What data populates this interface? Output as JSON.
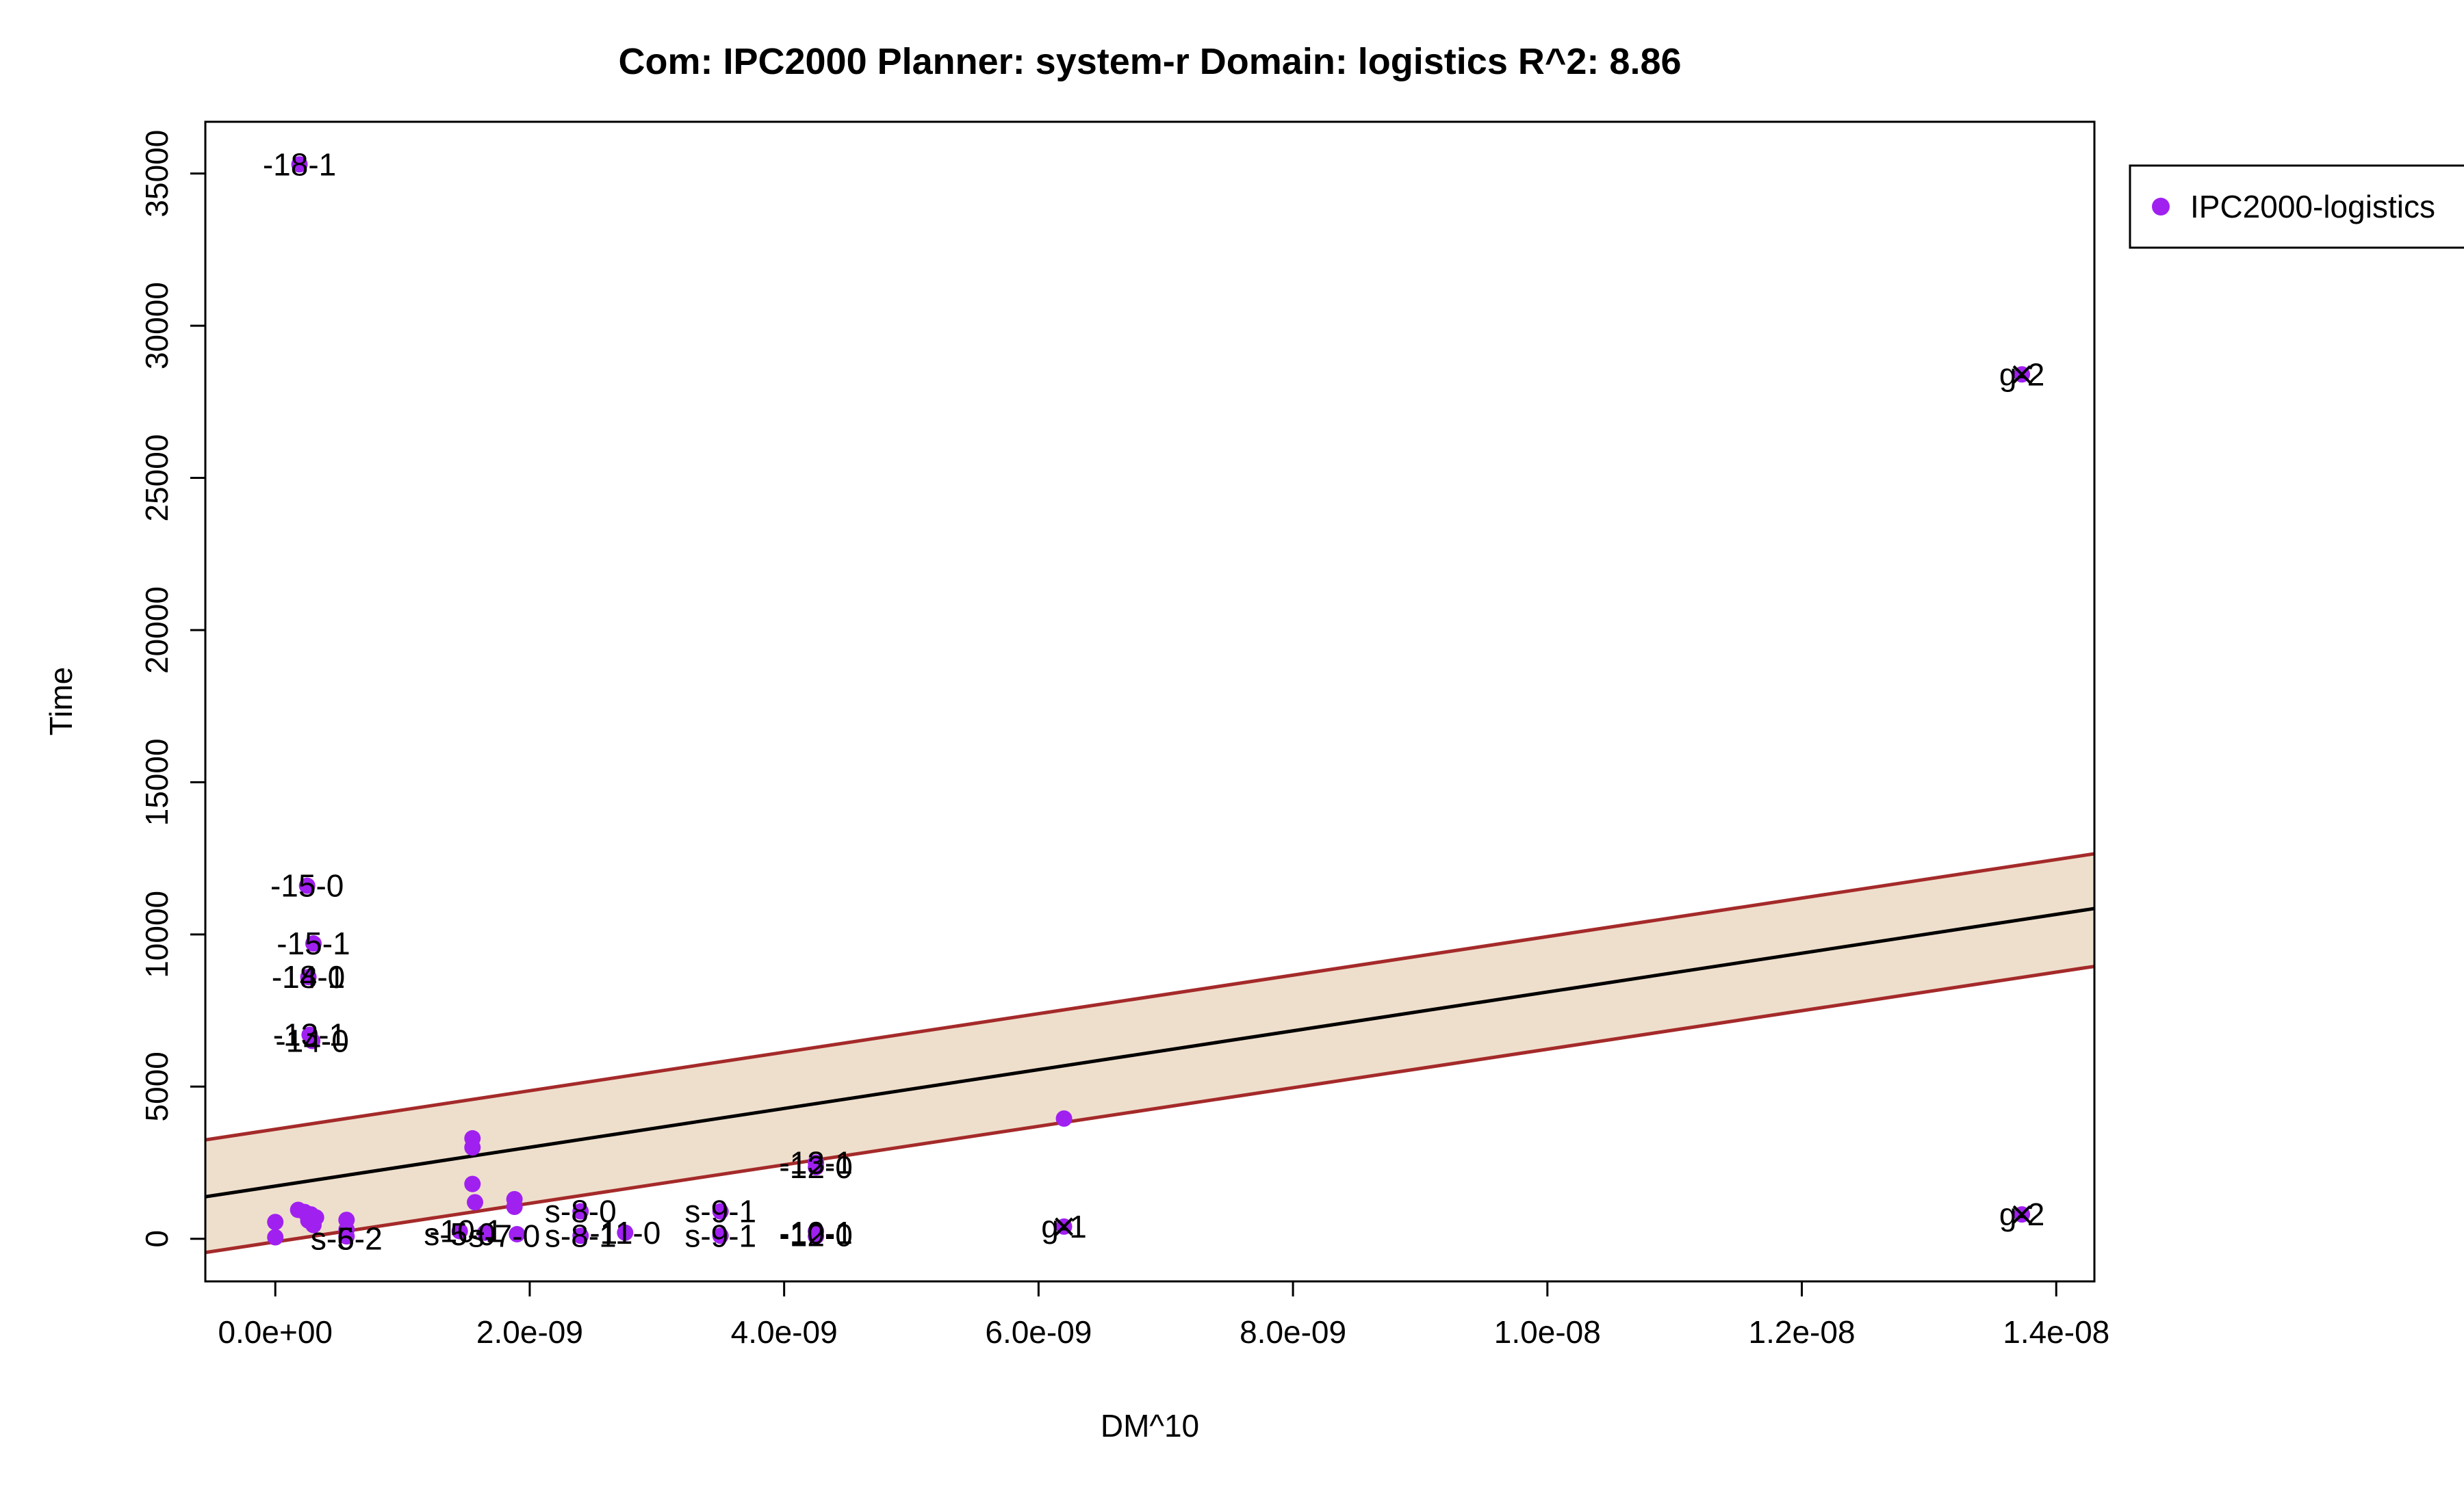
{
  "chart_data": {
    "type": "scatter",
    "title": "Com: IPC2000 Planner: system-r Domain: logistics R^2: 8.86",
    "xlabel": "DM^10",
    "ylabel": "Time",
    "xlim": [
      -5.5e-10,
      1.43e-08
    ],
    "ylim": [
      -1400,
      36700
    ],
    "x_ticks": [
      {
        "value": 0,
        "label": "0.0e+00"
      },
      {
        "value": 2e-09,
        "label": "2.0e-09"
      },
      {
        "value": 4e-09,
        "label": "4.0e-09"
      },
      {
        "value": 6e-09,
        "label": "6.0e-09"
      },
      {
        "value": 8e-09,
        "label": "8.0e-09"
      },
      {
        "value": 1e-08,
        "label": "1.0e-08"
      },
      {
        "value": 1.2e-08,
        "label": "1.2e-08"
      },
      {
        "value": 1.4e-08,
        "label": "1.4e-08"
      }
    ],
    "y_ticks": [
      {
        "value": 0,
        "label": "0"
      },
      {
        "value": 5000,
        "label": "5000"
      },
      {
        "value": 10000,
        "label": "10000"
      },
      {
        "value": 15000,
        "label": "15000"
      },
      {
        "value": 20000,
        "label": "20000"
      },
      {
        "value": 25000,
        "label": "25000"
      },
      {
        "value": 30000,
        "label": "30000"
      },
      {
        "value": 35000,
        "label": "35000"
      }
    ],
    "legend": {
      "position": "top-right, outside plot",
      "entries": [
        {
          "name": "IPC2000-logistics",
          "color": "#a020f0"
        }
      ]
    },
    "series": [
      {
        "name": "IPC2000-logistics",
        "color": "#a020f0",
        "points": [
          {
            "x": 1.9e-10,
            "y": 35300
          },
          {
            "x": 2.5e-10,
            "y": 11600
          },
          {
            "x": 3e-10,
            "y": 9700
          },
          {
            "x": 2.6e-10,
            "y": 8600
          },
          {
            "x": 2.7e-10,
            "y": 6700
          },
          {
            "x": 2.9e-10,
            "y": 6500
          },
          {
            "x": 0,
            "y": 550
          },
          {
            "x": 0,
            "y": 50
          },
          {
            "x": 1.8e-10,
            "y": 950
          },
          {
            "x": 2.3e-10,
            "y": 880
          },
          {
            "x": 2.8e-10,
            "y": 800
          },
          {
            "x": 3.2e-10,
            "y": 700
          },
          {
            "x": 2.6e-10,
            "y": 600
          },
          {
            "x": 3e-10,
            "y": 450
          },
          {
            "x": 5.6e-10,
            "y": 620
          },
          {
            "x": 5.6e-10,
            "y": 300
          },
          {
            "x": 5.6e-10,
            "y": 80
          },
          {
            "x": 1.55e-09,
            "y": 3300
          },
          {
            "x": 1.55e-09,
            "y": 3000
          },
          {
            "x": 1.55e-09,
            "y": 1800
          },
          {
            "x": 1.57e-09,
            "y": 1200
          },
          {
            "x": 1.88e-09,
            "y": 1300
          },
          {
            "x": 1.88e-09,
            "y": 1050
          },
          {
            "x": 1.45e-09,
            "y": 250
          },
          {
            "x": 1.65e-09,
            "y": 200
          },
          {
            "x": 1.9e-09,
            "y": 150
          },
          {
            "x": 2.4e-09,
            "y": 900
          },
          {
            "x": 2.4e-09,
            "y": 100
          },
          {
            "x": 2.75e-09,
            "y": 200
          },
          {
            "x": 3.5e-09,
            "y": 900
          },
          {
            "x": 3.5e-09,
            "y": 100
          },
          {
            "x": 4.25e-09,
            "y": 2500
          },
          {
            "x": 4.25e-09,
            "y": 2350
          },
          {
            "x": 4.25e-09,
            "y": 250
          },
          {
            "x": 4.25e-09,
            "y": 80
          },
          {
            "x": 6.2e-09,
            "y": 3950
          },
          {
            "x": 6.2e-09,
            "y": 400
          },
          {
            "x": 1.373e-08,
            "y": 28400
          },
          {
            "x": 1.373e-08,
            "y": 800
          }
        ],
        "crossed_points": [
          {
            "x": 6.2e-09,
            "y": 400
          },
          {
            "x": 1.373e-08,
            "y": 28400
          },
          {
            "x": 1.373e-08,
            "y": 800
          }
        ]
      }
    ],
    "point_labels": [
      {
        "text": "-18-1",
        "x": 1.9e-10,
        "y": 35300
      },
      {
        "text": "-15-0",
        "x": 2.5e-10,
        "y": 11600
      },
      {
        "text": "-15-1",
        "x": 3e-10,
        "y": 9700
      },
      {
        "text": "-14-1",
        "x": 2.6e-10,
        "y": 8600
      },
      {
        "text": "-18-0",
        "x": 2.6e-10,
        "y": 8600
      },
      {
        "text": "-13-1",
        "x": 2.7e-10,
        "y": 6700
      },
      {
        "text": "-14-0",
        "x": 2.9e-10,
        "y": 6500
      },
      {
        "text": "s-6-2",
        "x": 5.6e-10,
        "y": 0
      },
      {
        "text": "s-5-2",
        "x": 5.6e-10,
        "y": 0
      },
      {
        "text": "s-5-0",
        "x": 1.45e-09,
        "y": 150
      },
      {
        "text": "-10-1",
        "x": 1.5e-09,
        "y": 250
      },
      {
        "text": "s-7-0",
        "x": 1.8e-09,
        "y": 100
      },
      {
        "text": "s-8-0",
        "x": 2.4e-09,
        "y": 900
      },
      {
        "text": "s-8-1",
        "x": 2.4e-09,
        "y": 100
      },
      {
        "text": "-11-0",
        "x": 2.75e-09,
        "y": 200
      },
      {
        "text": "s-9-1",
        "x": 3.5e-09,
        "y": 900
      },
      {
        "text": "s-9-1",
        "x": 3.5e-09,
        "y": 100
      },
      {
        "text": "-13-1",
        "x": 4.25e-09,
        "y": 2500
      },
      {
        "text": "-12-0",
        "x": 4.25e-09,
        "y": 2350
      },
      {
        "text": "-10-1",
        "x": 4.25e-09,
        "y": 200
      },
      {
        "text": "-12-0",
        "x": 4.25e-09,
        "y": 120
      },
      {
        "text": "g-1",
        "x": 6.2e-09,
        "y": 400
      },
      {
        "text": "g-2",
        "x": 1.373e-08,
        "y": 28400
      },
      {
        "text": "g-2",
        "x": 1.373e-08,
        "y": 800
      }
    ],
    "regression": {
      "color": "#000000",
      "line": [
        {
          "x": -5.5e-10,
          "y": 1380
        },
        {
          "x": 1.43e-08,
          "y": 10850
        }
      ],
      "upper": [
        {
          "x": -5.5e-10,
          "y": 3250
        },
        {
          "x": 1.43e-08,
          "y": 12650
        }
      ],
      "lower": [
        {
          "x": -5.5e-10,
          "y": -450
        },
        {
          "x": 1.43e-08,
          "y": 8950
        }
      ],
      "band_color": "#eedfcc",
      "bound_color": "#a52a2a"
    },
    "grid": false
  }
}
